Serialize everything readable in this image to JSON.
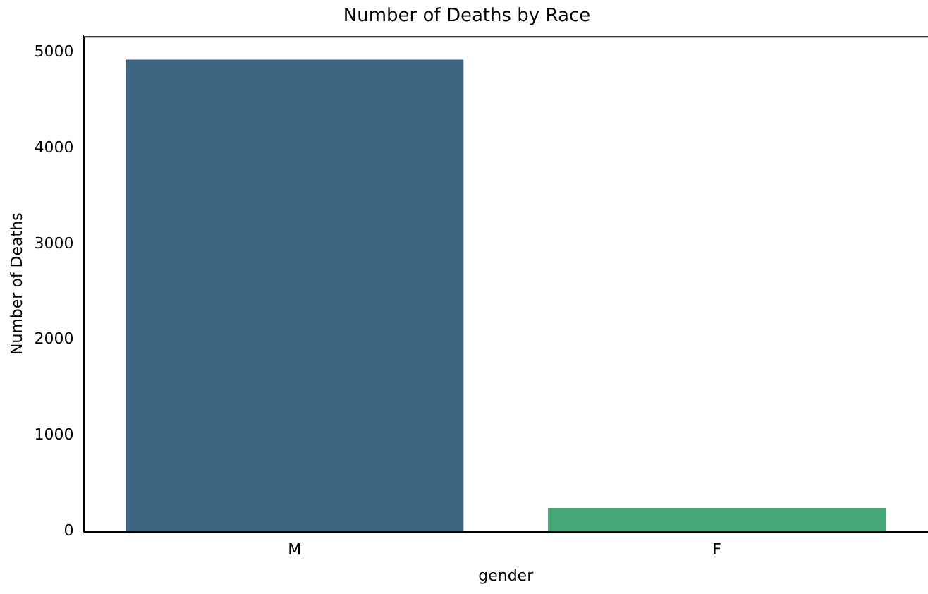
{
  "chart_data": {
    "type": "bar",
    "title": "Number of Deaths by Race",
    "xlabel": "gender",
    "ylabel": "Number of Deaths",
    "categories": [
      "M",
      "F"
    ],
    "values": [
      4925,
      245
    ],
    "colors": [
      "#3e6582",
      "#45a876"
    ],
    "ylim": [
      0,
      5170
    ],
    "yticks": [
      0,
      1000,
      2000,
      3000,
      4000,
      5000
    ],
    "grid": false,
    "legend": false
  }
}
